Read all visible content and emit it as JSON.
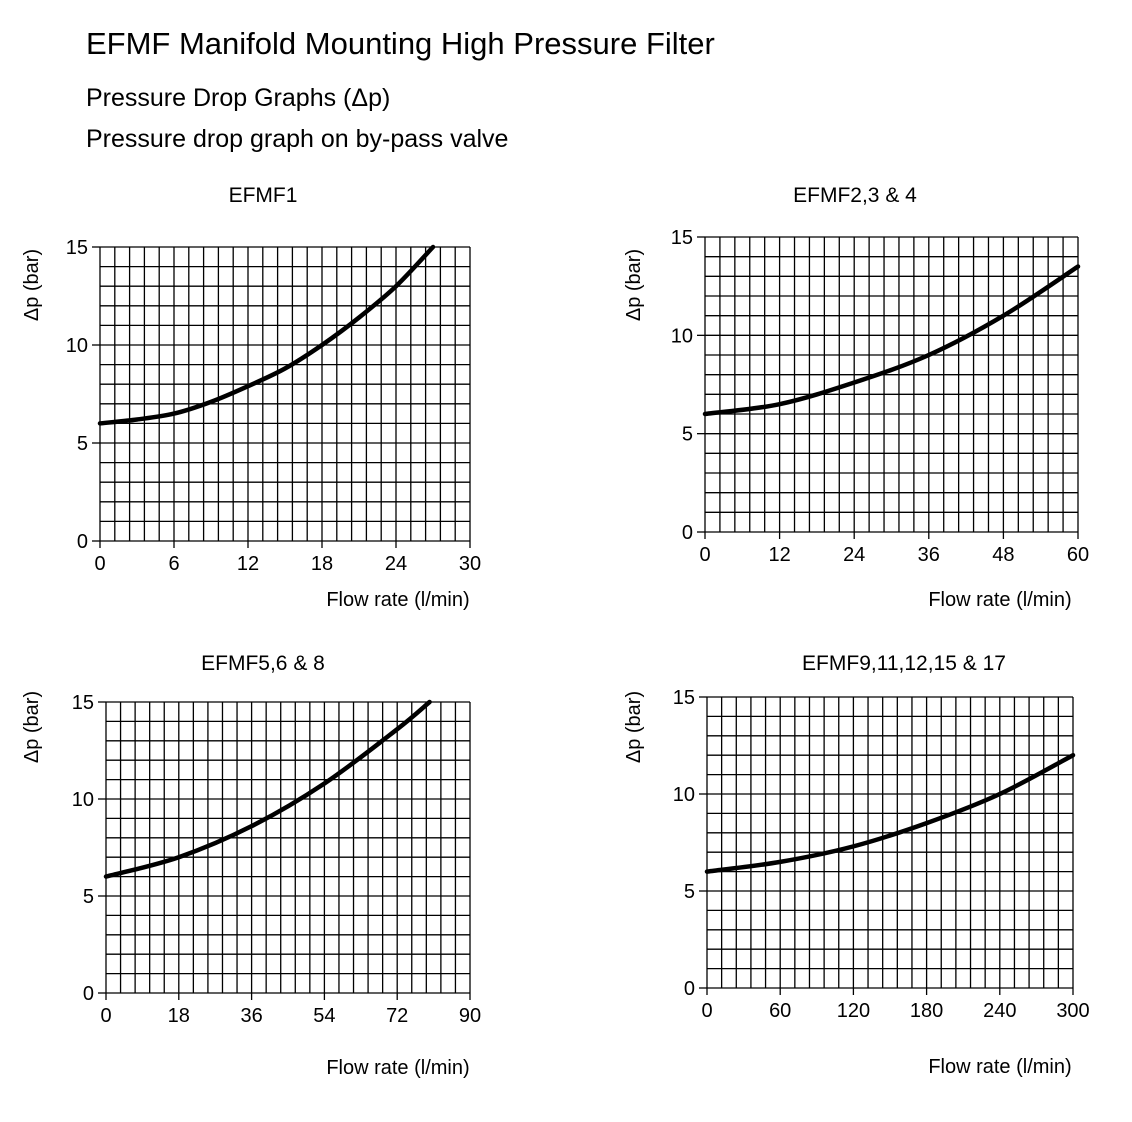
{
  "header": {
    "title": "EFMF Manifold Mounting High Pressure Filter",
    "subtitle": "Pressure Drop Graphs (Δp)",
    "subtitle2": "Pressure drop graph on by-pass valve"
  },
  "chart_data": [
    {
      "type": "line",
      "title": "EFMF1",
      "xlabel": "Flow rate (l/min)",
      "ylabel": "Δp (bar)",
      "xlim": [
        0,
        30
      ],
      "ylim": [
        0,
        15
      ],
      "xticks": [
        0,
        6,
        12,
        18,
        24,
        30
      ],
      "yticks": [
        0,
        5,
        10,
        15
      ],
      "grid": true,
      "grid_cols": 25,
      "grid_rows": 15,
      "x": [
        0,
        3,
        6,
        9,
        12,
        15,
        18,
        21,
        24,
        27
      ],
      "y": [
        6,
        6.2,
        6.5,
        7.1,
        7.9,
        8.8,
        10,
        11.4,
        13,
        15
      ]
    },
    {
      "type": "line",
      "title": "EFMF2,3 & 4",
      "xlabel": "Flow rate (l/min)",
      "ylabel": "Δp (bar)",
      "xlim": [
        0,
        60
      ],
      "ylim": [
        0,
        15
      ],
      "xticks": [
        0,
        12,
        24,
        36,
        48,
        60
      ],
      "yticks": [
        0,
        5,
        10,
        15
      ],
      "grid": true,
      "grid_cols": 25,
      "grid_rows": 15,
      "x": [
        0,
        12,
        24,
        36,
        48,
        60
      ],
      "y": [
        6,
        6.5,
        7.6,
        9,
        11,
        13.5
      ]
    },
    {
      "type": "line",
      "title": "EFMF5,6 & 8",
      "xlabel": "Flow rate (l/min)",
      "ylabel": "Δp (bar)",
      "xlim": [
        0,
        90
      ],
      "ylim": [
        0,
        15
      ],
      "xticks": [
        0,
        18,
        36,
        54,
        72,
        90
      ],
      "yticks": [
        0,
        5,
        10,
        15
      ],
      "grid": true,
      "grid_cols": 25,
      "grid_rows": 15,
      "x": [
        0,
        18,
        36,
        54,
        72,
        80
      ],
      "y": [
        6,
        7,
        8.6,
        10.8,
        13.6,
        15
      ]
    },
    {
      "type": "line",
      "title": "EFMF9,11,12,15 & 17",
      "xlabel": "Flow rate (l/min)",
      "ylabel": "Δp (bar)",
      "xlim": [
        0,
        300
      ],
      "ylim": [
        0,
        15
      ],
      "xticks": [
        0,
        60,
        120,
        180,
        240,
        300
      ],
      "yticks": [
        0,
        5,
        10,
        15
      ],
      "grid": true,
      "grid_cols": 25,
      "grid_rows": 15,
      "x": [
        0,
        60,
        120,
        180,
        240,
        300
      ],
      "y": [
        6,
        6.5,
        7.3,
        8.5,
        10,
        12
      ]
    }
  ]
}
